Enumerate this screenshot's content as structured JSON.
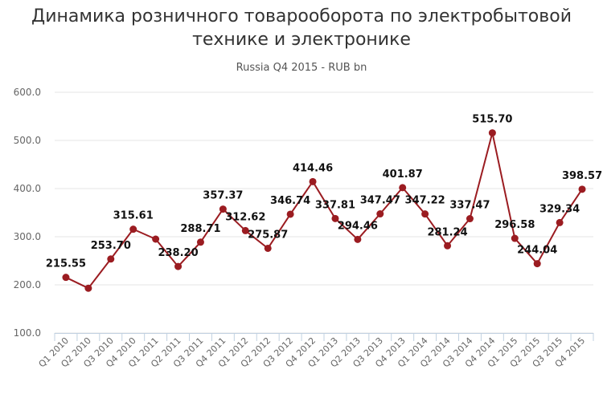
{
  "chart_data": {
    "type": "line",
    "title": "Динамика розничного товарооборота по электробытовой технике и электронике",
    "subtitle": "Russia Q4 2015 - RUB bn",
    "xlabel": "",
    "ylabel": "",
    "ylim": [
      100,
      600
    ],
    "yticks": [
      "100.0",
      "200.0",
      "300.0",
      "400.0",
      "500.0",
      "600.0"
    ],
    "grid": true,
    "legend": "none",
    "line_color": "#9b1c21",
    "categories": [
      "Q1 2010",
      "Q2 2010",
      "Q3 2010",
      "Q4 2010",
      "Q1 2011",
      "Q2 2011",
      "Q3 2011",
      "Q4 2011",
      "Q1 2012",
      "Q2 2012",
      "Q3 2012",
      "Q4 2012",
      "Q1 2013",
      "Q2 2013",
      "Q3 2013",
      "Q4 2013",
      "Q1 2014",
      "Q2 2014",
      "Q3 2014",
      "Q4 2014",
      "Q1 2015",
      "Q2 2015",
      "Q3 2015",
      "Q4 2015"
    ],
    "series": [
      {
        "values": [
          215.55,
          193.0,
          253.7,
          315.61,
          295.0,
          238.2,
          288.71,
          357.37,
          312.62,
          275.87,
          346.74,
          414.46,
          337.81,
          294.46,
          347.47,
          401.87,
          347.22,
          281.24,
          337.47,
          515.7,
          296.58,
          244.04,
          329.34,
          398.57
        ],
        "labels": [
          "215.55",
          "",
          "253.70",
          "315.61",
          "",
          "238.20",
          "288.71",
          "357.37",
          "312.62",
          "275.87",
          "346.74",
          "414.46",
          "337.81",
          "294.46",
          "347.47",
          "401.87",
          "347.22",
          "281.24",
          "337.47",
          "515.70",
          "296.58",
          "244.04",
          "329.34",
          "398.57"
        ]
      }
    ]
  }
}
